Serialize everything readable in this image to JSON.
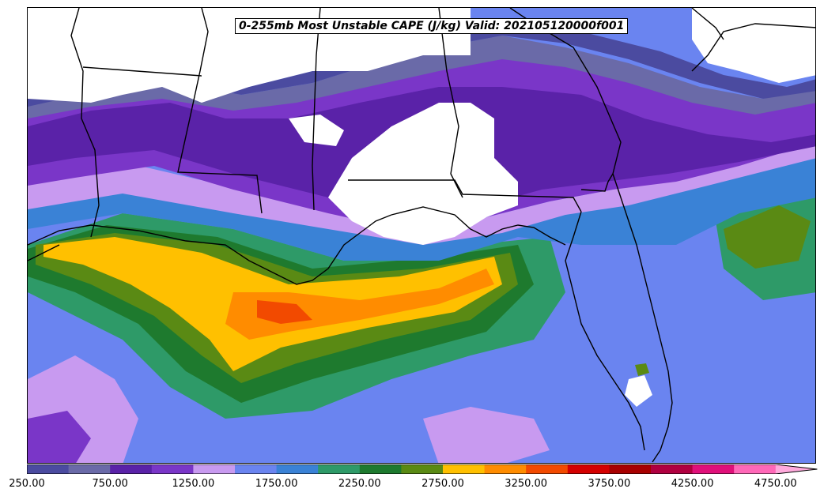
{
  "title": "0-255mb Most Unstable CAPE (J/kg) Valid: 202105120000f001",
  "colorbar": {
    "levels": [
      250,
      500,
      750,
      1000,
      1250,
      1500,
      1750,
      2000,
      2250,
      2500,
      2750,
      3000,
      3250,
      3500,
      3750,
      4000,
      4250,
      4500,
      4750
    ],
    "colors": [
      "#4b4ba0",
      "#6a6aa8",
      "#5a22a8",
      "#7a36c8",
      "#c89af0",
      "#6a84f0",
      "#3a82d6",
      "#2e9a68",
      "#1e7a2e",
      "#5a8a14",
      "#ffc000",
      "#ff8c00",
      "#f24a00",
      "#d40000",
      "#a80000",
      "#b00040",
      "#e0107a",
      "#ff68b8",
      "#ffaadc"
    ],
    "tick_labels": [
      "250.00",
      "750.00",
      "1250.00",
      "1750.00",
      "2250.00",
      "2750.00",
      "3250.00",
      "3750.00",
      "4250.00",
      "4750.00"
    ],
    "extend": "max"
  }
}
